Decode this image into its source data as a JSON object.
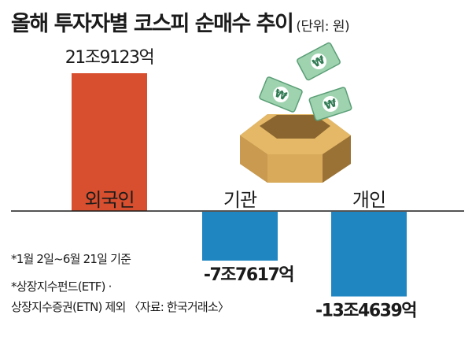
{
  "header": {
    "title": "올해 투자자별 코스피 순매수 추이",
    "unit": "(단위: 원)"
  },
  "notes": [
    "*1월 2일~6월 21일 기준",
    "*상장지수펀드(ETF) ·",
    "상장지수증권(ETN) 제외 〈자료: 한국거래소〉"
  ],
  "chart_data": {
    "type": "bar",
    "categories": [
      "외국인",
      "기관",
      "개인"
    ],
    "values": [
      219123,
      -77617,
      -134639
    ],
    "value_unit": "억 원",
    "value_labels": [
      "21조9123억",
      "-7조7617억",
      "-13조4639억"
    ],
    "colors": [
      "#d84f2f",
      "#1f86c2",
      "#1f86c2"
    ],
    "title": "올해 투자자별 코스피 순매수 추이",
    "xlabel": "",
    "ylabel": "",
    "grid": false,
    "legend": false
  },
  "colors": {
    "positive_bar": "#d84f2f",
    "negative_bar": "#1f86c2",
    "axis": "#1b1b1b"
  },
  "illustration": {
    "icon": "money-box-icon",
    "bill_symbol": "₩"
  }
}
